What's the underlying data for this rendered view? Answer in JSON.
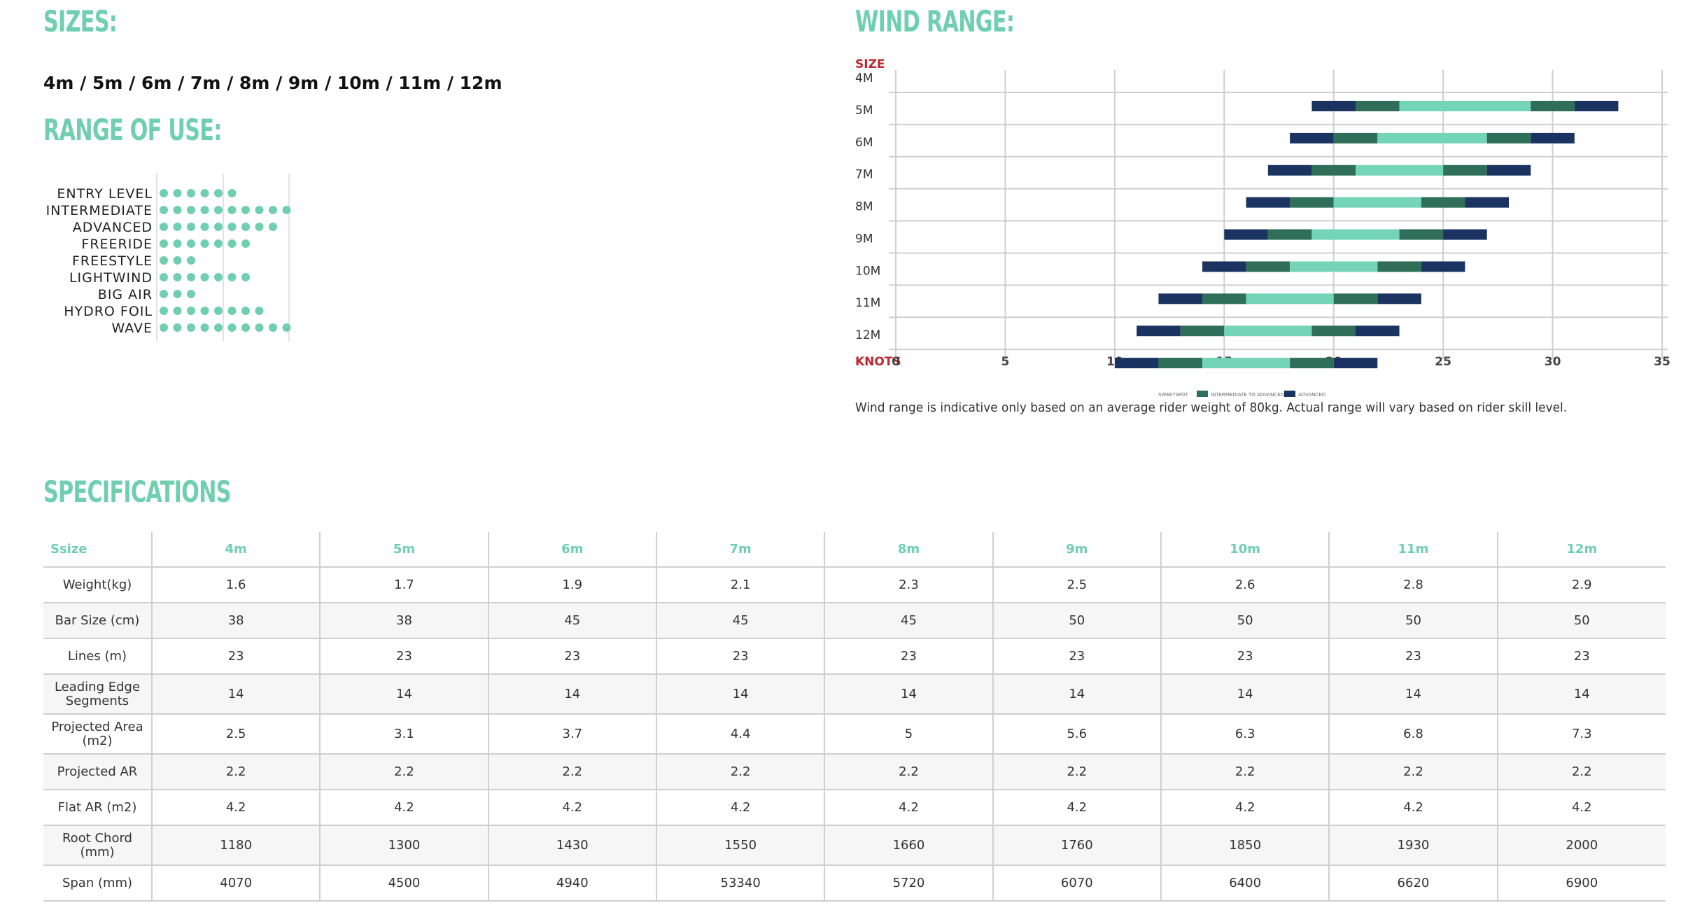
{
  "sizes": {
    "heading": "SIZES:",
    "list": "4m / 5m / 6m / 7m / 8m / 9m / 10m / 11m / 12m"
  },
  "range_of_use": {
    "heading": "RANGE OF USE:",
    "colors": {
      "dot": "#6fcfae",
      "grid": "#d9d9d9"
    },
    "items": [
      {
        "label": "ENTRY LEVEL",
        "dots": 6
      },
      {
        "label": "INTERMEDIATE",
        "dots": 10
      },
      {
        "label": "ADVANCED",
        "dots": 9
      },
      {
        "label": "FREERIDE",
        "dots": 7
      },
      {
        "label": "FREESTYLE",
        "dots": 3
      },
      {
        "label": "LIGHTWIND",
        "dots": 7
      },
      {
        "label": "BIG AIR",
        "dots": 3
      },
      {
        "label": "HYDRO FOIL",
        "dots": 8
      },
      {
        "label": "WAVE",
        "dots": 10
      }
    ]
  },
  "wind_range": {
    "heading": "WIND RANGE:",
    "note": "Wind range is indicative only based on an average rider weight of 80kg. Actual range will vary based on rider skill level.",
    "chart_data": {
      "type": "bar",
      "orientation": "horizontal-stacked-range",
      "y_axis_label": "SIZE",
      "x_axis_label": "KNOTS",
      "xlim": [
        0,
        35
      ],
      "xticks": [
        0,
        5,
        10,
        15,
        20,
        25,
        30,
        35
      ],
      "categories": [
        "4M",
        "5M",
        "6M",
        "7M",
        "8M",
        "9M",
        "10M",
        "11M",
        "12M"
      ],
      "colors": {
        "sweetspot": "#74d4b6",
        "intermediate": "#2f6e58",
        "advanced": "#1b3361"
      },
      "legend": [
        "SWEETSPOT",
        "INTERMEDIATE TO ADVANCED",
        "ADVANCED"
      ],
      "series": [
        {
          "segments": [
            [
              19,
              21,
              "advanced"
            ],
            [
              21,
              23,
              "intermediate"
            ],
            [
              23,
              29,
              "sweetspot"
            ],
            [
              29,
              31,
              "intermediate"
            ],
            [
              31,
              33,
              "advanced"
            ]
          ]
        },
        {
          "segments": [
            [
              18,
              20,
              "advanced"
            ],
            [
              20,
              22,
              "intermediate"
            ],
            [
              22,
              27,
              "sweetspot"
            ],
            [
              27,
              29,
              "intermediate"
            ],
            [
              29,
              31,
              "advanced"
            ]
          ]
        },
        {
          "segments": [
            [
              17,
              19,
              "advanced"
            ],
            [
              19,
              21,
              "intermediate"
            ],
            [
              21,
              25,
              "sweetspot"
            ],
            [
              25,
              27,
              "intermediate"
            ],
            [
              27,
              29,
              "advanced"
            ]
          ]
        },
        {
          "segments": [
            [
              16,
              18,
              "advanced"
            ],
            [
              18,
              20,
              "intermediate"
            ],
            [
              20,
              24,
              "sweetspot"
            ],
            [
              24,
              26,
              "intermediate"
            ],
            [
              26,
              28,
              "advanced"
            ]
          ]
        },
        {
          "segments": [
            [
              15,
              17,
              "advanced"
            ],
            [
              17,
              19,
              "intermediate"
            ],
            [
              19,
              23,
              "sweetspot"
            ],
            [
              23,
              25,
              "intermediate"
            ],
            [
              25,
              27,
              "advanced"
            ]
          ]
        },
        {
          "segments": [
            [
              14,
              16,
              "advanced"
            ],
            [
              16,
              18,
              "intermediate"
            ],
            [
              18,
              22,
              "sweetspot"
            ],
            [
              22,
              24,
              "intermediate"
            ],
            [
              24,
              26,
              "advanced"
            ]
          ]
        },
        {
          "segments": [
            [
              12,
              14,
              "advanced"
            ],
            [
              14,
              16,
              "intermediate"
            ],
            [
              16,
              20,
              "sweetspot"
            ],
            [
              20,
              22,
              "intermediate"
            ],
            [
              22,
              24,
              "advanced"
            ]
          ]
        },
        {
          "segments": [
            [
              11,
              13,
              "advanced"
            ],
            [
              13,
              15,
              "intermediate"
            ],
            [
              15,
              19,
              "sweetspot"
            ],
            [
              19,
              21,
              "intermediate"
            ],
            [
              21,
              23,
              "advanced"
            ]
          ]
        },
        {
          "segments": [
            [
              10,
              12,
              "advanced"
            ],
            [
              12,
              14,
              "intermediate"
            ],
            [
              14,
              18,
              "sweetspot"
            ],
            [
              18,
              20,
              "intermediate"
            ],
            [
              20,
              22,
              "advanced"
            ]
          ]
        }
      ]
    }
  },
  "specifications": {
    "heading": "SPECIFICATIONS",
    "columns": [
      "Ssize",
      "4m",
      "5m",
      "6m",
      "7m",
      "8m",
      "9m",
      "10m",
      "11m",
      "12m"
    ],
    "rows": [
      {
        "label": "Weight(kg)",
        "values": [
          "1.6",
          "1.7",
          "1.9",
          "2.1",
          "2.3",
          "2.5",
          "2.6",
          "2.8",
          "2.9"
        ]
      },
      {
        "label": "Bar Size (cm)",
        "values": [
          "38",
          "38",
          "45",
          "45",
          "45",
          "50",
          "50",
          "50",
          "50"
        ]
      },
      {
        "label": "Lines (m)",
        "values": [
          "23",
          "23",
          "23",
          "23",
          "23",
          "23",
          "23",
          "23",
          "23"
        ]
      },
      {
        "label": "Leading Edge Segments",
        "values": [
          "14",
          "14",
          "14",
          "14",
          "14",
          "14",
          "14",
          "14",
          "14"
        ]
      },
      {
        "label": "Projected Area (m2)",
        "values": [
          "2.5",
          "3.1",
          "3.7",
          "4.4",
          "5",
          "5.6",
          "6.3",
          "6.8",
          "7.3"
        ]
      },
      {
        "label": "Projected AR",
        "values": [
          "2.2",
          "2.2",
          "2.2",
          "2.2",
          "2.2",
          "2.2",
          "2.2",
          "2.2",
          "2.2"
        ]
      },
      {
        "label": "Flat AR (m2)",
        "values": [
          "4.2",
          "4.2",
          "4.2",
          "4.2",
          "4.2",
          "4.2",
          "4.2",
          "4.2",
          "4.2"
        ]
      },
      {
        "label": "Root Chord (mm)",
        "values": [
          "1180",
          "1300",
          "1430",
          "1550",
          "1660",
          "1760",
          "1850",
          "1930",
          "2000"
        ]
      },
      {
        "label": "Span (mm)",
        "values": [
          "4070",
          "4500",
          "4940",
          "53340",
          "5720",
          "6070",
          "6400",
          "6620",
          "6900"
        ]
      }
    ]
  }
}
